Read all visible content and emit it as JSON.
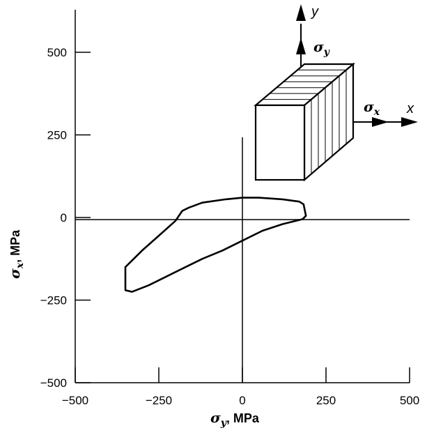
{
  "chart_data": {
    "type": "line",
    "xlabel": {
      "symbol": "σ",
      "sub": "y",
      "unit": ", MPa"
    },
    "ylabel": {
      "symbol": "σ",
      "sub": "x",
      "unit": ", MPa"
    },
    "xlim": [
      -500,
      500
    ],
    "ylim": [
      -500,
      500
    ],
    "xticks": [
      -500,
      -250,
      0,
      250,
      500
    ],
    "yticks": [
      -500,
      -250,
      0,
      250,
      500
    ],
    "xtick_labels": [
      "−500",
      "−250",
      "0",
      "250",
      "500"
    ],
    "ytick_labels": [
      "−500",
      "−250",
      "0",
      "250",
      "500"
    ],
    "grid": false,
    "series": [
      {
        "closed": true,
        "x": [
          -180,
          -160,
          -120,
          -50,
          0,
          50,
          120,
          170,
          183,
          190,
          180,
          120,
          60,
          0,
          -60,
          -120,
          -170,
          -220,
          -280,
          -330,
          -350,
          -350,
          -300,
          -250,
          -200,
          -180
        ],
        "y": [
          20,
          30,
          45,
          55,
          60,
          60,
          55,
          48,
          40,
          5,
          -5,
          -20,
          -40,
          -70,
          -100,
          -125,
          -150,
          -175,
          -205,
          -225,
          -220,
          -150,
          -100,
          -55,
          -10,
          20
        ]
      }
    ]
  },
  "inset": {
    "stress_label": {
      "symbol": "σ",
      "sub": "y"
    },
    "stress_label_x": {
      "symbol": "σ",
      "sub": "x"
    },
    "axis_y": "y",
    "axis_x": "x"
  }
}
